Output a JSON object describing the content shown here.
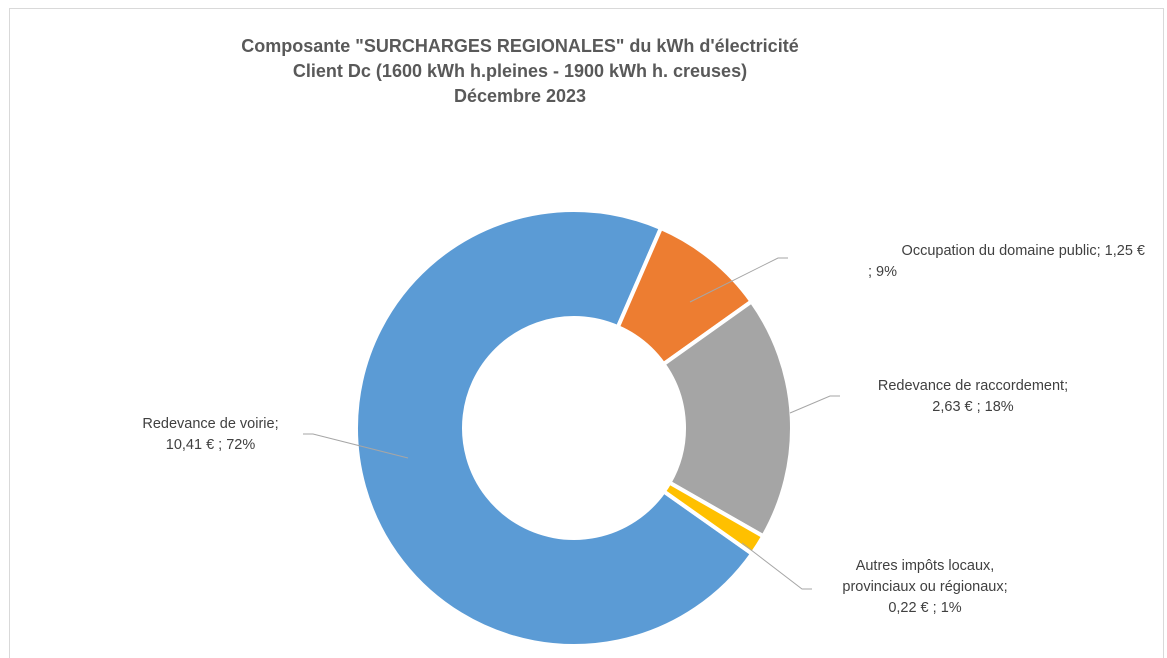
{
  "chart_data": {
    "type": "pie",
    "donut": true,
    "title": [
      "Composante \"SURCHARGES REGIONALES\"  du kWh d'électricité",
      "Client Dc (1600 kWh h.pleines - 1900 kWh h. creuses)",
      "Décembre 2023"
    ],
    "series": [
      {
        "values": [
          10.41,
          1.25,
          2.63,
          0.22
        ]
      }
    ],
    "categories": [
      "Redevance de voirie",
      "Occupation du domaine public",
      "Redevance de raccordement",
      "Autres impôts locaux, provinciaux ou régionaux"
    ],
    "slices": [
      {
        "name": "Redevance de voirie",
        "value": 10.41,
        "percent": 72,
        "color": "#5b9bd5"
      },
      {
        "name": "Occupation du domaine public",
        "value": 1.25,
        "percent": 9,
        "color": "#ed7d31"
      },
      {
        "name": "Redevance de raccordement",
        "value": 2.63,
        "percent": 18,
        "color": "#a5a5a5"
      },
      {
        "name": "Autres impôts locaux, provinciaux ou régionaux",
        "value": 0.22,
        "percent": 1,
        "color": "#ffc000"
      }
    ],
    "data_labels": {
      "voirie": [
        "Redevance de voirie;",
        "10,41 € ; 72%"
      ],
      "occupation": [
        "Occupation du domaine public;  1,25 €",
        "; 9%"
      ],
      "raccordement": [
        "Redevance de raccordement;",
        "2,63 € ; 18%"
      ],
      "autres": [
        "Autres impôts locaux,",
        "provinciaux ou régionaux;",
        "0,22 € ; 1%"
      ]
    },
    "legend": "none",
    "leader_line_color": "#a6a6a6"
  }
}
